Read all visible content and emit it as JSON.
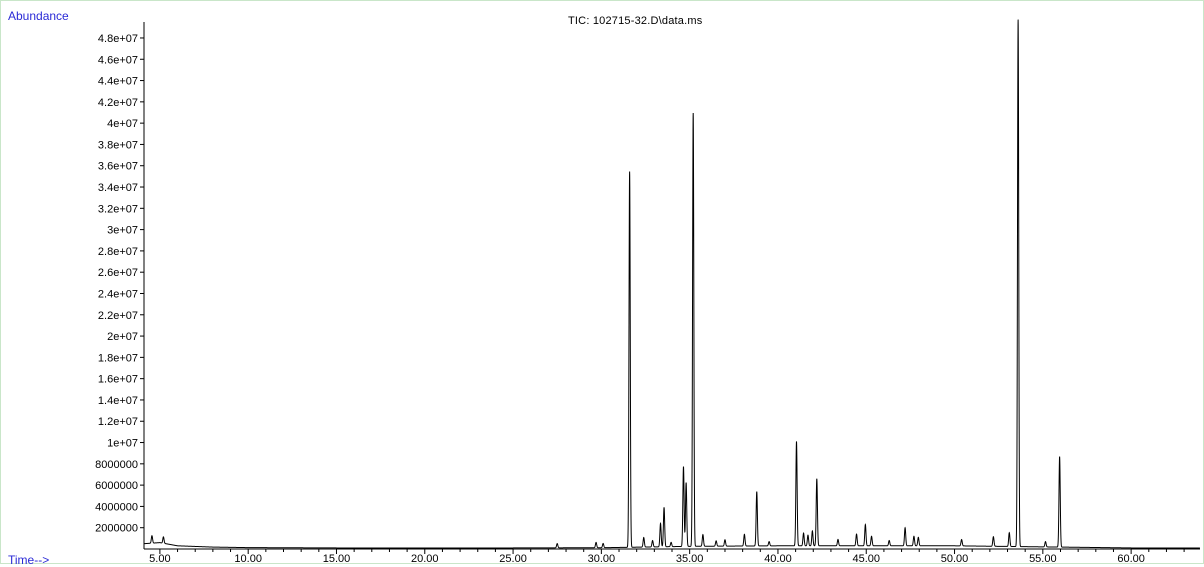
{
  "chart_data": {
    "type": "line",
    "title": "TIC: 102715-32.D\\data.ms",
    "ylabel": "Abundance",
    "xlabel": "Time-->",
    "xlim": [
      4.1,
      63.9
    ],
    "ylim": [
      0,
      49500000
    ],
    "yticks": [
      2000000,
      4000000,
      6000000,
      8000000,
      10000000,
      12000000,
      14000000,
      16000000,
      18000000,
      20000000,
      22000000,
      24000000,
      26000000,
      28000000,
      30000000,
      32000000,
      34000000,
      36000000,
      38000000,
      40000000,
      42000000,
      44000000,
      46000000,
      48000000
    ],
    "yticklabels": [
      "2000000",
      "4000000",
      "6000000",
      "8000000",
      "1e+07",
      "1.2e+07",
      "1.4e+07",
      "1.6e+07",
      "1.8e+07",
      "2e+07",
      "2.2e+07",
      "2.4e+07",
      "2.6e+07",
      "2.8e+07",
      "3e+07",
      "3.2e+07",
      "3.4e+07",
      "3.6e+07",
      "3.8e+07",
      "4e+07",
      "4.2e+07",
      "4.4e+07",
      "4.6e+07",
      "4.8e+07"
    ],
    "xticks": [
      5,
      10,
      15,
      20,
      25,
      30,
      35,
      40,
      45,
      50,
      55,
      60
    ],
    "xticklabels": [
      "5.00",
      "10.00",
      "15.00",
      "20.00",
      "25.00",
      "30.00",
      "35.00",
      "40.00",
      "45.00",
      "50.00",
      "55.00",
      "60.00"
    ],
    "baseline": [
      [
        4.1,
        500000
      ],
      [
        5.0,
        600000
      ],
      [
        6.0,
        300000
      ],
      [
        8.0,
        180000
      ],
      [
        10.0,
        130000
      ],
      [
        15.0,
        100000
      ],
      [
        20.0,
        100000
      ],
      [
        25.0,
        100000
      ],
      [
        30.0,
        120000
      ],
      [
        35.0,
        250000
      ],
      [
        40.0,
        300000
      ],
      [
        45.0,
        300000
      ],
      [
        50.0,
        300000
      ],
      [
        55.0,
        200000
      ],
      [
        60.0,
        100000
      ],
      [
        63.9,
        100000
      ]
    ],
    "peaks": [
      {
        "x": 4.55,
        "y": 700000
      },
      {
        "x": 5.2,
        "y": 600000
      },
      {
        "x": 27.5,
        "y": 400000
      },
      {
        "x": 29.7,
        "y": 500000
      },
      {
        "x": 30.1,
        "y": 400000
      },
      {
        "x": 31.6,
        "y": 35300000
      },
      {
        "x": 32.4,
        "y": 900000
      },
      {
        "x": 32.9,
        "y": 600000
      },
      {
        "x": 33.35,
        "y": 2200000
      },
      {
        "x": 33.55,
        "y": 3700000
      },
      {
        "x": 33.95,
        "y": 400000
      },
      {
        "x": 34.65,
        "y": 7500000
      },
      {
        "x": 34.8,
        "y": 6000000
      },
      {
        "x": 35.2,
        "y": 40700000
      },
      {
        "x": 35.75,
        "y": 1100000
      },
      {
        "x": 36.5,
        "y": 500000
      },
      {
        "x": 37.0,
        "y": 600000
      },
      {
        "x": 38.1,
        "y": 1100000
      },
      {
        "x": 38.8,
        "y": 5100000
      },
      {
        "x": 39.5,
        "y": 400000
      },
      {
        "x": 41.05,
        "y": 9800000
      },
      {
        "x": 41.45,
        "y": 1200000
      },
      {
        "x": 41.7,
        "y": 1000000
      },
      {
        "x": 41.95,
        "y": 1400000
      },
      {
        "x": 42.2,
        "y": 6300000
      },
      {
        "x": 43.4,
        "y": 600000
      },
      {
        "x": 44.45,
        "y": 1100000
      },
      {
        "x": 44.95,
        "y": 2000000
      },
      {
        "x": 45.3,
        "y": 900000
      },
      {
        "x": 46.3,
        "y": 500000
      },
      {
        "x": 47.2,
        "y": 1700000
      },
      {
        "x": 47.7,
        "y": 900000
      },
      {
        "x": 47.95,
        "y": 800000
      },
      {
        "x": 50.4,
        "y": 600000
      },
      {
        "x": 52.2,
        "y": 900000
      },
      {
        "x": 53.1,
        "y": 1300000
      },
      {
        "x": 53.6,
        "y": 49500000
      },
      {
        "x": 55.15,
        "y": 500000
      },
      {
        "x": 55.95,
        "y": 8500000
      }
    ]
  }
}
